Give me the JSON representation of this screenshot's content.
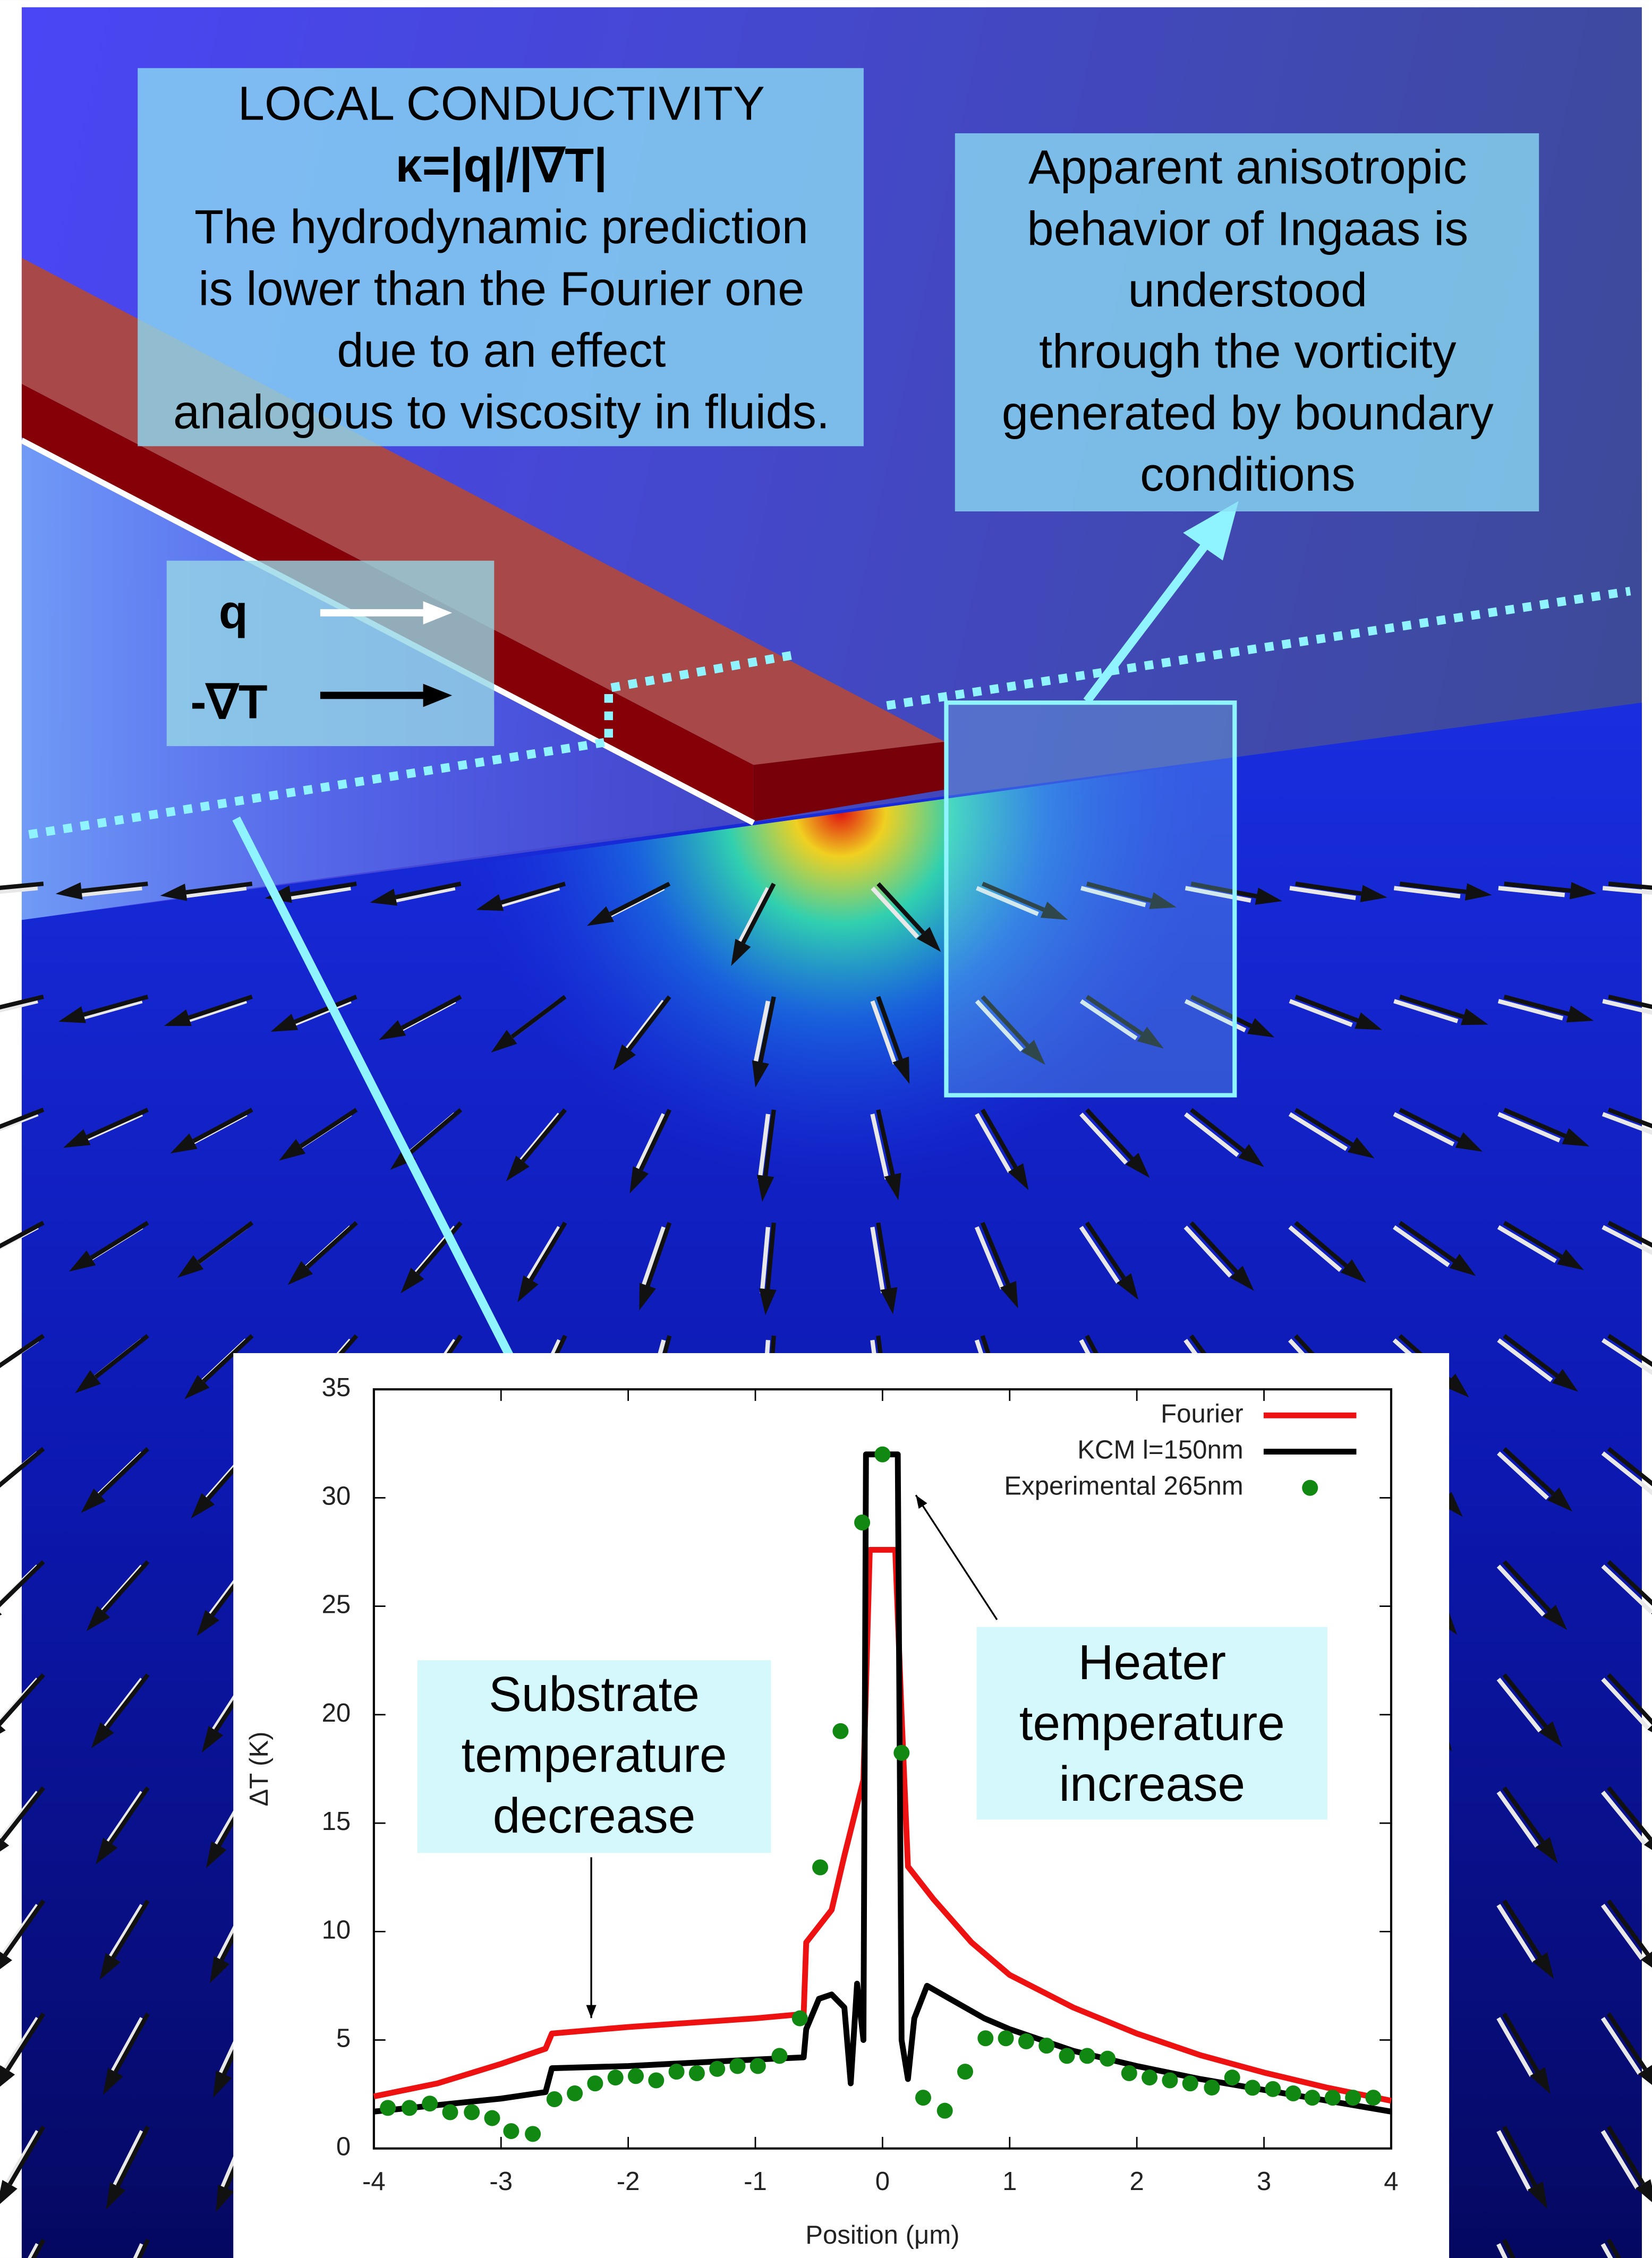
{
  "figure": {
    "conductivity_box": [
      "LOCAL  CONDUCTIVITY",
      "κ=|q|/|∇T|",
      "The hydrodynamic prediction",
      "is lower than the Fourier one",
      "due to an effect",
      "analogous to viscosity in fluids."
    ],
    "anisotropy_box": [
      "Apparent anisotropic",
      "behavior of Ingaas is",
      "understood",
      "through the vorticity",
      "generated by boundary",
      "conditions"
    ],
    "legend_q": "q",
    "legend_grad": "-∇T"
  },
  "chart_data": {
    "type": "line",
    "xlabel": "Position (μm)",
    "ylabel": "ΔT (K)",
    "xlim": [
      -4,
      4
    ],
    "xticks": [
      -4,
      -3,
      -2,
      -1,
      0,
      1,
      2,
      3,
      4
    ],
    "ylim": [
      0,
      35
    ],
    "yticks": [
      0,
      5,
      10,
      15,
      20,
      25,
      30,
      35
    ],
    "legend": "upper right",
    "annotations": [
      {
        "text": [
          "Substrate",
          "temperature",
          "decrease"
        ]
      },
      {
        "text": [
          "Heater",
          "temperature",
          "increase"
        ]
      }
    ],
    "series": [
      {
        "name": "Fourier",
        "color": "#ee1111",
        "mode": "lines",
        "x": [
          -4,
          -3.5,
          -3,
          -2.65,
          -2.6,
          -2,
          -1,
          -0.62,
          -0.6,
          -0.4,
          -0.3,
          -0.15,
          -0.1,
          0.1,
          0.15,
          0.2,
          0.4,
          0.7,
          1,
          1.5,
          2,
          2.5,
          3,
          3.5,
          4
        ],
        "values": [
          2.4,
          3.0,
          3.9,
          4.6,
          5.3,
          5.6,
          6.0,
          6.2,
          9.5,
          11,
          13.5,
          17,
          27.6,
          27.6,
          20,
          13,
          11.5,
          9.5,
          8,
          6.5,
          5.3,
          4.3,
          3.5,
          2.8,
          2.2
        ]
      },
      {
        "name": "KCM l=150nm",
        "color": "#000000",
        "mode": "lines",
        "x": [
          -4,
          -3,
          -2.65,
          -2.6,
          -2,
          -1,
          -0.62,
          -0.6,
          -0.5,
          -0.4,
          -0.3,
          -0.25,
          -0.2,
          -0.15,
          -0.13,
          0.12,
          0.15,
          0.2,
          0.25,
          0.35,
          0.5,
          0.8,
          1,
          1.5,
          2,
          2.5,
          3,
          3.5,
          4
        ],
        "values": [
          1.7,
          2.3,
          2.6,
          3.7,
          3.8,
          4.1,
          4.2,
          5.5,
          6.9,
          7.1,
          6.5,
          3.0,
          7.6,
          5,
          32,
          32,
          5,
          3.2,
          6,
          7.5,
          7,
          6,
          5.5,
          4.5,
          3.8,
          3.2,
          2.7,
          2.2,
          1.7
        ]
      },
      {
        "name": "Experimental 265nm",
        "color": "#118811",
        "mode": "markers",
        "x": [
          -3.89,
          -3.72,
          -3.56,
          -3.4,
          -3.23,
          -3.07,
          -2.92,
          -2.75,
          -2.58,
          -2.42,
          -2.26,
          -2.1,
          -1.94,
          -1.78,
          -1.62,
          -1.46,
          -1.3,
          -1.14,
          -0.98,
          -0.81,
          -0.65,
          -0.49,
          -0.33,
          -0.16,
          0.0,
          0.15,
          0.32,
          0.49,
          0.65,
          0.81,
          0.97,
          1.13,
          1.29,
          1.45,
          1.61,
          1.77,
          1.94,
          2.1,
          2.26,
          2.42,
          2.59,
          2.75,
          2.91,
          3.07,
          3.23,
          3.38,
          3.54,
          3.7,
          3.86
        ],
        "values": [
          1.87,
          1.87,
          2.07,
          1.67,
          1.67,
          1.4,
          0.8,
          0.67,
          2.27,
          2.54,
          3.0,
          3.27,
          3.34,
          3.14,
          3.54,
          3.47,
          3.67,
          3.8,
          3.8,
          4.27,
          6.0,
          12.96,
          19.24,
          28.86,
          32.0,
          18.24,
          2.34,
          1.74,
          3.54,
          5.08,
          5.08,
          4.94,
          4.74,
          4.27,
          4.27,
          4.14,
          3.47,
          3.27,
          3.14,
          3.0,
          2.81,
          3.27,
          2.8,
          2.74,
          2.54,
          2.34,
          2.34,
          2.34,
          2.34
        ]
      }
    ]
  }
}
